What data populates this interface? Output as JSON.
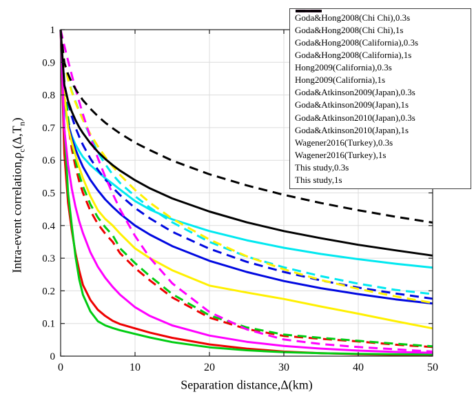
{
  "chart_data": {
    "type": "line",
    "title": "",
    "xlabel": "Separation distance,Δ(km)",
    "ylabel_parts": [
      {
        "t": "Intra-event correlation,ρ"
      },
      {
        "sub": "c"
      },
      {
        "t": "(Δ,T"
      },
      {
        "sub": "n"
      },
      {
        "t": ")"
      }
    ],
    "xlim": [
      0,
      50
    ],
    "ylim": [
      0,
      1
    ],
    "x_ticks": [
      "0",
      "10",
      "20",
      "30",
      "40",
      "50"
    ],
    "y_ticks": [
      "0",
      "0.1",
      "0.2",
      "0.3",
      "0.4",
      "0.5",
      "0.6",
      "0.7",
      "0.8",
      "0.9",
      "1"
    ],
    "grid": true,
    "legend_position": "top-right",
    "x": [
      0,
      0.5,
      1,
      1.5,
      2,
      2.5,
      3,
      4,
      5,
      6,
      7,
      8,
      10,
      12,
      15,
      20,
      25,
      30,
      35,
      40,
      45,
      50
    ],
    "series": [
      {
        "name": "Goda&Hong2008(Chi Chi),0.3s",
        "color": "#00e8f0",
        "dashed": false,
        "values": [
          1,
          0.762,
          0.709,
          0.674,
          0.648,
          0.628,
          0.61,
          0.585,
          0.565,
          0.545,
          0.528,
          0.51,
          0.475,
          0.449,
          0.419,
          0.383,
          0.355,
          0.332,
          0.313,
          0.297,
          0.283,
          0.271
        ]
      },
      {
        "name": "Goda&Hong2008(Chi Chi),1s",
        "color": "#00e8f0",
        "dashed": true,
        "values": [
          1,
          0.89,
          0.85,
          0.812,
          0.78,
          0.751,
          0.724,
          0.672,
          0.625,
          0.588,
          0.556,
          0.53,
          0.49,
          0.455,
          0.41,
          0.35,
          0.305,
          0.272,
          0.245,
          0.222,
          0.203,
          0.19
        ]
      },
      {
        "name": "Goda&Hong2008(California),0.3s",
        "color": "#ee0000",
        "dashed": false,
        "values": [
          1,
          0.62,
          0.47,
          0.385,
          0.315,
          0.262,
          0.218,
          0.172,
          0.142,
          0.123,
          0.108,
          0.098,
          0.085,
          0.072,
          0.056,
          0.036,
          0.023,
          0.014,
          0.009,
          0.006,
          0.004,
          0.003
        ]
      },
      {
        "name": "Goda&Hong2008(California),1s",
        "color": "#ee0000",
        "dashed": true,
        "values": [
          1,
          0.82,
          0.71,
          0.635,
          0.58,
          0.535,
          0.5,
          0.445,
          0.405,
          0.375,
          0.35,
          0.315,
          0.27,
          0.232,
          0.18,
          0.118,
          0.083,
          0.062,
          0.053,
          0.045,
          0.035,
          0.028
        ]
      },
      {
        "name": "Hong2009(California),0.3s",
        "color": "#00cc11",
        "dashed": false,
        "values": [
          1,
          0.7,
          0.5,
          0.4,
          0.305,
          0.235,
          0.188,
          0.137,
          0.107,
          0.094,
          0.086,
          0.079,
          0.068,
          0.057,
          0.043,
          0.027,
          0.018,
          0.012,
          0.009,
          0.007,
          0.006,
          0.005
        ]
      },
      {
        "name": "Hong2009(California),1s",
        "color": "#00cc11",
        "dashed": true,
        "values": [
          1,
          0.84,
          0.73,
          0.655,
          0.6,
          0.555,
          0.52,
          0.465,
          0.425,
          0.395,
          0.37,
          0.33,
          0.285,
          0.245,
          0.19,
          0.125,
          0.088,
          0.066,
          0.056,
          0.047,
          0.038,
          0.03
        ]
      },
      {
        "name": "Goda&Atkinson2009(Japan),0.3s",
        "color": "#0008e0",
        "dashed": false,
        "values": [
          1,
          0.778,
          0.712,
          0.668,
          0.633,
          0.605,
          0.58,
          0.54,
          0.508,
          0.48,
          0.457,
          0.436,
          0.4,
          0.372,
          0.337,
          0.292,
          0.258,
          0.23,
          0.208,
          0.19,
          0.174,
          0.161
        ]
      },
      {
        "name": "Goda&Atkinson2009(Japan),1s",
        "color": "#0008e0",
        "dashed": true,
        "values": [
          1,
          0.835,
          0.776,
          0.734,
          0.7,
          0.672,
          0.647,
          0.605,
          0.571,
          0.541,
          0.516,
          0.493,
          0.454,
          0.422,
          0.381,
          0.329,
          0.289,
          0.258,
          0.232,
          0.21,
          0.192,
          0.176
        ]
      },
      {
        "name": "Goda&Atkinson2010(Japan),0.3s",
        "color": "#fff000",
        "dashed": false,
        "values": [
          1,
          0.8,
          0.7,
          0.655,
          0.615,
          0.578,
          0.545,
          0.49,
          0.447,
          0.42,
          0.4,
          0.375,
          0.33,
          0.3,
          0.263,
          0.216,
          0.195,
          0.175,
          0.152,
          0.13,
          0.107,
          0.085
        ]
      },
      {
        "name": "Goda&Atkinson2010(Japan),1s",
        "color": "#fff000",
        "dashed": true,
        "values": [
          1,
          0.898,
          0.848,
          0.809,
          0.777,
          0.749,
          0.724,
          0.68,
          0.643,
          0.61,
          0.581,
          0.555,
          0.509,
          0.47,
          0.421,
          0.357,
          0.306,
          0.266,
          0.233,
          0.206,
          0.183,
          0.163
        ]
      },
      {
        "name": "Wagener2016(Turkey),0.3s",
        "color": "#ff00ff",
        "dashed": false,
        "values": [
          1,
          0.694,
          0.586,
          0.513,
          0.457,
          0.413,
          0.377,
          0.318,
          0.274,
          0.24,
          0.212,
          0.188,
          0.15,
          0.123,
          0.094,
          0.063,
          0.044,
          0.031,
          0.023,
          0.017,
          0.013,
          0.01
        ]
      },
      {
        "name": "Wagener2016(Turkey),1s",
        "color": "#ff00ff",
        "dashed": true,
        "values": [
          1,
          0.951,
          0.905,
          0.861,
          0.819,
          0.779,
          0.741,
          0.67,
          0.607,
          0.549,
          0.497,
          0.449,
          0.368,
          0.301,
          0.223,
          0.135,
          0.082,
          0.051,
          0.037,
          0.028,
          0.021,
          0.014
        ]
      },
      {
        "name": "This study,0.3s",
        "color": "#000000",
        "dashed": false,
        "values": [
          1,
          0.83,
          0.782,
          0.749,
          0.723,
          0.701,
          0.683,
          0.652,
          0.626,
          0.604,
          0.585,
          0.568,
          0.539,
          0.514,
          0.483,
          0.443,
          0.41,
          0.383,
          0.361,
          0.341,
          0.324,
          0.308
        ]
      },
      {
        "name": "This study,1s",
        "color": "#000000",
        "dashed": true,
        "values": [
          1,
          0.899,
          0.864,
          0.838,
          0.818,
          0.8,
          0.784,
          0.758,
          0.735,
          0.715,
          0.698,
          0.682,
          0.654,
          0.631,
          0.599,
          0.557,
          0.523,
          0.494,
          0.469,
          0.447,
          0.427,
          0.409
        ]
      }
    ]
  },
  "style_colors": {
    "grid": "#dcdcdc",
    "axis": "#1a1a1a",
    "background": "#ffffff",
    "legend_border": "#3c3c3c",
    "text": "#000000"
  }
}
